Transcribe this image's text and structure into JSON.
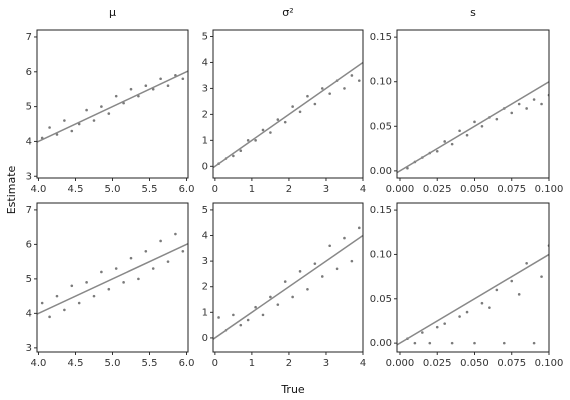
{
  "xlabel": "True",
  "ylabel": "Estimate",
  "chart_data": [
    {
      "type": "scatter",
      "title": "μ",
      "color": "#222222",
      "reference_line": "identity",
      "xlim": [
        3.98,
        6.02
      ],
      "ylim": [
        2.95,
        7.2
      ],
      "xticks": [
        {
          "value": 4.0,
          "label": "4.0"
        },
        4.5,
        {
          "value": 5.0,
          "label": "5.0"
        },
        5.5,
        {
          "value": 6.0,
          "label": "6.0"
        }
      ],
      "yticks": [
        3,
        4,
        5,
        6,
        7
      ],
      "x": [
        4.05,
        4.15,
        4.25,
        4.35,
        4.45,
        4.55,
        4.65,
        4.75,
        4.85,
        4.95,
        5.05,
        5.15,
        5.25,
        5.35,
        5.45,
        5.55,
        5.65,
        5.75,
        5.85,
        5.95
      ],
      "y": [
        4.1,
        4.4,
        4.2,
        4.6,
        4.3,
        4.5,
        4.9,
        4.6,
        5.0,
        4.8,
        5.3,
        5.1,
        5.5,
        5.3,
        5.6,
        5.5,
        5.8,
        5.6,
        5.9,
        5.8
      ]
    },
    {
      "type": "scatter",
      "title": "σ²",
      "color": "#222222",
      "reference_line": "identity",
      "xlim": [
        -0.05,
        4.0
      ],
      "ylim": [
        -0.45,
        5.25
      ],
      "xticks": [
        0,
        1,
        2,
        3,
        4
      ],
      "yticks": [
        0,
        1,
        2,
        3,
        4,
        5
      ],
      "x": [
        0.1,
        0.3,
        0.5,
        0.7,
        0.9,
        1.1,
        1.3,
        1.5,
        1.7,
        1.9,
        2.1,
        2.3,
        2.5,
        2.7,
        2.9,
        3.1,
        3.3,
        3.5,
        3.7,
        3.9
      ],
      "y": [
        0.1,
        0.3,
        0.4,
        0.6,
        1.0,
        1.0,
        1.4,
        1.3,
        1.8,
        1.7,
        2.3,
        2.1,
        2.7,
        2.4,
        3.0,
        2.8,
        3.3,
        3.0,
        3.5,
        3.3
      ]
    },
    {
      "type": "scatter",
      "title": "s",
      "color": "#222222",
      "reference_line": "identity",
      "xlim": [
        -0.002,
        0.1
      ],
      "ylim": [
        -0.008,
        0.158
      ],
      "xticks": [
        {
          "value": 0,
          "label": "0.000"
        },
        {
          "value": 0.025,
          "label": "0.025"
        },
        {
          "value": 0.05,
          "label": "0.050"
        },
        {
          "value": 0.075,
          "label": "0.075"
        },
        {
          "value": 0.1,
          "label": "0.100"
        }
      ],
      "yticks": [
        {
          "value": 0,
          "label": "0.00"
        },
        {
          "value": 0.05,
          "label": "0.05"
        },
        {
          "value": 0.1,
          "label": "0.10"
        },
        {
          "value": 0.15,
          "label": "0.15"
        }
      ],
      "x": [
        0.005,
        0.01,
        0.015,
        0.02,
        0.025,
        0.03,
        0.035,
        0.04,
        0.045,
        0.05,
        0.055,
        0.06,
        0.065,
        0.07,
        0.075,
        0.08,
        0.085,
        0.09,
        0.095,
        0.1
      ],
      "y": [
        0.003,
        0.01,
        0.015,
        0.02,
        0.022,
        0.033,
        0.03,
        0.045,
        0.04,
        0.055,
        0.05,
        0.06,
        0.058,
        0.07,
        0.065,
        0.075,
        0.07,
        0.08,
        0.075,
        0.085
      ]
    },
    {
      "type": "scatter",
      "color": "#222222",
      "reference_line": "identity",
      "xlim": [
        3.98,
        6.02
      ],
      "ylim": [
        2.88,
        7.2
      ],
      "xticks": [
        {
          "value": 4.0,
          "label": "4.0"
        },
        4.5,
        {
          "value": 5.0,
          "label": "5.0"
        },
        5.5,
        {
          "value": 6.0,
          "label": "6.0"
        }
      ],
      "yticks": [
        3,
        4,
        5,
        6,
        7
      ],
      "x": [
        4.05,
        4.15,
        4.25,
        4.35,
        4.45,
        4.55,
        4.65,
        4.75,
        4.85,
        4.95,
        5.05,
        5.15,
        5.25,
        5.35,
        5.45,
        5.55,
        5.65,
        5.75,
        5.85,
        5.95
      ],
      "y": [
        4.3,
        3.9,
        4.5,
        4.1,
        4.8,
        4.3,
        4.9,
        4.5,
        5.2,
        4.7,
        5.3,
        4.9,
        5.6,
        5.0,
        5.8,
        5.3,
        6.1,
        5.5,
        6.3,
        5.8
      ]
    },
    {
      "type": "scatter",
      "color": "#222222",
      "reference_line": "identity",
      "xlim": [
        -0.05,
        4.0
      ],
      "ylim": [
        -0.55,
        5.27
      ],
      "xticks": [
        0,
        1,
        2,
        3,
        4
      ],
      "yticks": [
        0,
        1,
        2,
        3,
        4,
        5
      ],
      "x": [
        0.1,
        0.3,
        0.5,
        0.7,
        0.9,
        1.1,
        1.3,
        1.5,
        1.7,
        1.9,
        2.1,
        2.3,
        2.5,
        2.7,
        2.9,
        3.1,
        3.3,
        3.5,
        3.7,
        3.9
      ],
      "y": [
        0.8,
        0.3,
        0.9,
        0.5,
        0.7,
        1.2,
        0.9,
        1.6,
        1.3,
        2.2,
        1.6,
        2.6,
        1.9,
        2.9,
        2.4,
        3.6,
        2.7,
        3.9,
        3.0,
        4.3
      ]
    },
    {
      "type": "scatter",
      "color": "#222222",
      "reference_line": "identity",
      "xlim": [
        -0.002,
        0.1
      ],
      "ylim": [
        -0.01,
        0.158
      ],
      "xticks": [
        {
          "value": 0,
          "label": "0.000"
        },
        {
          "value": 0.025,
          "label": "0.025"
        },
        {
          "value": 0.05,
          "label": "0.050"
        },
        {
          "value": 0.075,
          "label": "0.075"
        },
        {
          "value": 0.1,
          "label": "0.100"
        }
      ],
      "yticks": [
        {
          "value": 0,
          "label": "0.00"
        },
        {
          "value": 0.05,
          "label": "0.05"
        },
        {
          "value": 0.1,
          "label": "0.10"
        },
        {
          "value": 0.15,
          "label": "0.15"
        }
      ],
      "x": [
        0.005,
        0.01,
        0.015,
        0.02,
        0.025,
        0.03,
        0.035,
        0.04,
        0.045,
        0.05,
        0.055,
        0.06,
        0.065,
        0.07,
        0.075,
        0.08,
        0.085,
        0.09,
        0.095,
        0.1
      ],
      "y": [
        0.005,
        0.0,
        0.012,
        0.0,
        0.018,
        0.022,
        0.0,
        0.03,
        0.035,
        0.0,
        0.045,
        0.04,
        0.06,
        0.0,
        0.07,
        0.055,
        0.09,
        0.0,
        0.075,
        0.11
      ]
    }
  ]
}
